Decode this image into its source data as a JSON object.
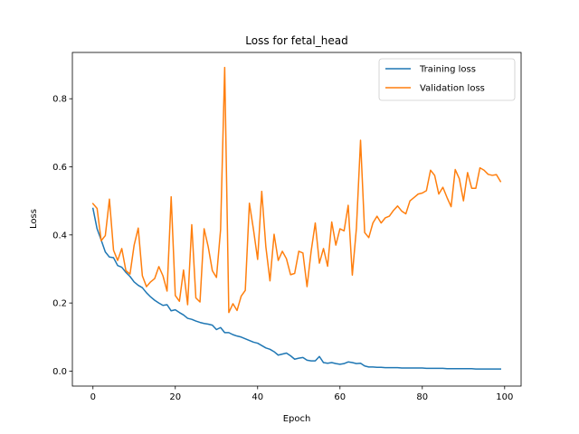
{
  "chart_data": {
    "type": "line",
    "title": "Loss for fetal_head",
    "xlabel": "Epoch",
    "ylabel": "Loss",
    "xlim": [
      -5,
      104
    ],
    "ylim": [
      -0.044,
      0.936
    ],
    "xticks": [
      0,
      20,
      40,
      60,
      80,
      100
    ],
    "yticks": [
      0.0,
      0.2,
      0.4,
      0.6,
      0.8
    ],
    "ytick_labels": [
      "0.0",
      "0.2",
      "0.4",
      "0.6",
      "0.8"
    ],
    "grid": false,
    "legend_position": "top-right",
    "series": [
      {
        "name": "Training loss",
        "color": "#1f77b4",
        "x": [
          0,
          1,
          2,
          3,
          4,
          5,
          6,
          7,
          8,
          9,
          10,
          11,
          12,
          13,
          14,
          15,
          16,
          17,
          18,
          19,
          20,
          21,
          22,
          23,
          24,
          25,
          26,
          27,
          28,
          29,
          30,
          31,
          32,
          33,
          34,
          35,
          36,
          37,
          38,
          39,
          40,
          41,
          42,
          43,
          44,
          45,
          46,
          47,
          48,
          49,
          50,
          51,
          52,
          53,
          54,
          55,
          56,
          57,
          58,
          59,
          60,
          61,
          62,
          63,
          64,
          65,
          66,
          67,
          68,
          69,
          70,
          71,
          72,
          73,
          74,
          75,
          76,
          77,
          78,
          79,
          80,
          81,
          82,
          83,
          84,
          85,
          86,
          87,
          88,
          89,
          90,
          91,
          92,
          93,
          94,
          95,
          96,
          97,
          98,
          99
        ],
        "y": [
          0.478,
          0.418,
          0.385,
          0.35,
          0.335,
          0.333,
          0.31,
          0.305,
          0.29,
          0.278,
          0.262,
          0.252,
          0.245,
          0.23,
          0.218,
          0.208,
          0.2,
          0.193,
          0.195,
          0.177,
          0.18,
          0.172,
          0.165,
          0.155,
          0.152,
          0.147,
          0.143,
          0.14,
          0.138,
          0.135,
          0.122,
          0.128,
          0.113,
          0.113,
          0.107,
          0.103,
          0.1,
          0.095,
          0.09,
          0.085,
          0.082,
          0.075,
          0.068,
          0.064,
          0.057,
          0.047,
          0.05,
          0.053,
          0.045,
          0.035,
          0.038,
          0.04,
          0.032,
          0.03,
          0.03,
          0.043,
          0.025,
          0.023,
          0.025,
          0.022,
          0.02,
          0.022,
          0.027,
          0.025,
          0.022,
          0.023,
          0.015,
          0.012,
          0.012,
          0.011,
          0.011,
          0.01,
          0.01,
          0.01,
          0.01,
          0.009,
          0.009,
          0.009,
          0.009,
          0.009,
          0.009,
          0.008,
          0.008,
          0.008,
          0.008,
          0.008,
          0.007,
          0.007,
          0.007,
          0.007,
          0.007,
          0.007,
          0.007,
          0.006,
          0.006,
          0.006,
          0.006,
          0.006,
          0.006,
          0.006
        ]
      },
      {
        "name": "Validation loss",
        "color": "#ff7f0e",
        "x": [
          0,
          1,
          2,
          3,
          4,
          5,
          6,
          7,
          8,
          9,
          10,
          11,
          12,
          13,
          14,
          15,
          16,
          17,
          18,
          19,
          20,
          21,
          22,
          23,
          24,
          25,
          26,
          27,
          28,
          29,
          30,
          31,
          32,
          33,
          34,
          35,
          36,
          37,
          38,
          39,
          40,
          41,
          42,
          43,
          44,
          45,
          46,
          47,
          48,
          49,
          50,
          51,
          52,
          53,
          54,
          55,
          56,
          57,
          58,
          59,
          60,
          61,
          62,
          63,
          64,
          65,
          66,
          67,
          68,
          69,
          70,
          71,
          72,
          73,
          74,
          75,
          76,
          77,
          78,
          79,
          80,
          81,
          82,
          83,
          84,
          85,
          86,
          87,
          88,
          89,
          90,
          91,
          92,
          93,
          94,
          95,
          96,
          97,
          98,
          99
        ],
        "y": [
          0.492,
          0.478,
          0.383,
          0.398,
          0.505,
          0.355,
          0.325,
          0.36,
          0.295,
          0.285,
          0.37,
          0.42,
          0.28,
          0.248,
          0.262,
          0.272,
          0.307,
          0.28,
          0.235,
          0.512,
          0.222,
          0.205,
          0.297,
          0.195,
          0.43,
          0.215,
          0.203,
          0.418,
          0.365,
          0.295,
          0.275,
          0.415,
          0.892,
          0.172,
          0.198,
          0.178,
          0.22,
          0.237,
          0.493,
          0.415,
          0.328,
          0.528,
          0.365,
          0.265,
          0.402,
          0.325,
          0.352,
          0.33,
          0.283,
          0.287,
          0.352,
          0.347,
          0.248,
          0.352,
          0.435,
          0.317,
          0.36,
          0.308,
          0.438,
          0.37,
          0.418,
          0.412,
          0.487,
          0.282,
          0.42,
          0.678,
          0.407,
          0.392,
          0.435,
          0.455,
          0.435,
          0.45,
          0.455,
          0.472,
          0.485,
          0.47,
          0.462,
          0.5,
          0.51,
          0.52,
          0.523,
          0.53,
          0.59,
          0.575,
          0.52,
          0.54,
          0.51,
          0.483,
          0.592,
          0.565,
          0.5,
          0.583,
          0.537,
          0.537,
          0.597,
          0.59,
          0.578,
          0.575,
          0.577,
          0.557
        ]
      }
    ]
  }
}
